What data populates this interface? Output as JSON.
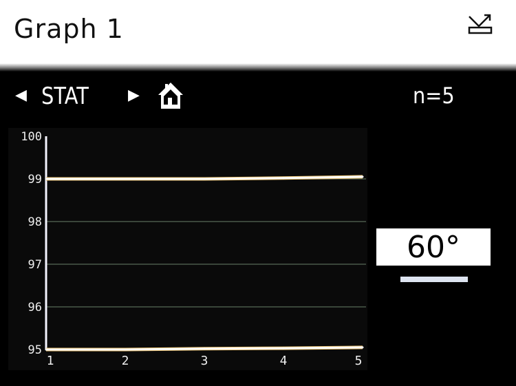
{
  "header": {
    "title": "Graph 1",
    "export_icon": "export-icon"
  },
  "toolbar": {
    "prev_icon": "triangle-left-icon",
    "mode": "STAT",
    "next_icon": "triangle-right-icon",
    "home_icon": "home-icon",
    "count": "n=5"
  },
  "angle": {
    "label": "60°"
  },
  "chart_data": {
    "type": "line",
    "x": [
      1,
      2,
      3,
      4,
      5
    ],
    "xticks": [
      "1",
      "2",
      "3",
      "4",
      "5"
    ],
    "yticks": [
      "95",
      "96",
      "97",
      "98",
      "99",
      "100"
    ],
    "ylim": [
      95,
      100
    ],
    "xlim": [
      1,
      5
    ],
    "grid": true,
    "series": [
      {
        "values": [
          99.0,
          99.0,
          99.0,
          99.02,
          99.05
        ],
        "color": "#ffffff"
      },
      {
        "values": [
          95.0,
          95.0,
          95.02,
          95.03,
          95.05
        ],
        "color": "#ffffff"
      }
    ]
  }
}
